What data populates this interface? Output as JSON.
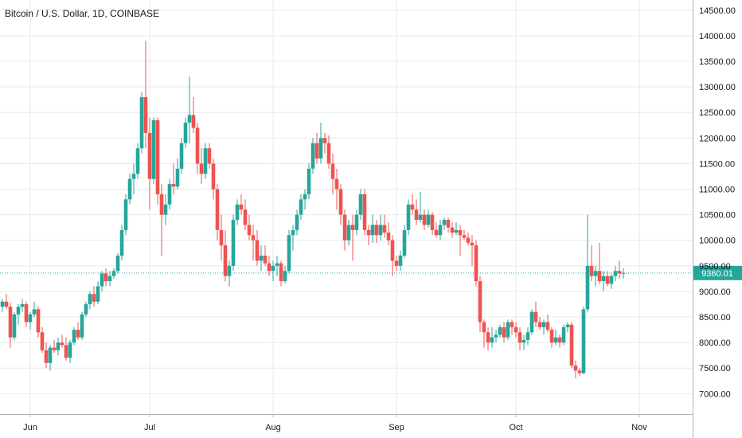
{
  "symbol_title": "Bitcoin / U.S. Dollar, 1D, COINBASE",
  "colors": {
    "up": "#26a69a",
    "down": "#ef5350",
    "grid": "#e6e9ee",
    "axis": "#b2b5be",
    "last_price_line": "#26a69a",
    "last_price_tag": "#26a69a"
  },
  "chart_data": {
    "type": "candlestick",
    "title": "Bitcoin / U.S. Dollar, 1D, COINBASE",
    "ylim": [
      6600,
      14700
    ],
    "y_ticks": [
      7000,
      7500,
      8000,
      8500,
      9000,
      9500,
      10000,
      10500,
      11000,
      11500,
      12000,
      12500,
      13000,
      13500,
      14000,
      14500
    ],
    "y_tick_labels": [
      "7000.00",
      "7500.00",
      "8000.00",
      "8500.00",
      "9000.00",
      "9500.00",
      "10000.00",
      "10500.00",
      "11000.00",
      "11500.00",
      "12000.00",
      "12500.00",
      "13000.00",
      "13500.00",
      "14000.00",
      "14500.00"
    ],
    "x_ticks": [
      {
        "label": "Jun",
        "date": "2019-06-01"
      },
      {
        "label": "Jul",
        "date": "2019-07-01"
      },
      {
        "label": "Aug",
        "date": "2019-08-01"
      },
      {
        "label": "Sep",
        "date": "2019-09-01"
      },
      {
        "label": "Oct",
        "date": "2019-10-01"
      },
      {
        "label": "Nov",
        "date": "2019-11-01"
      }
    ],
    "start_date": "2019-05-25",
    "last_price": 9360.01,
    "last_price_label": "9360.01",
    "grid": true,
    "ohlc": [
      [
        8700,
        8850,
        8600,
        8800
      ],
      [
        8800,
        8950,
        8650,
        8700
      ],
      [
        8700,
        8780,
        7900,
        8100
      ],
      [
        8100,
        8600,
        8050,
        8550
      ],
      [
        8550,
        8750,
        8350,
        8700
      ],
      [
        8700,
        8850,
        8600,
        8750
      ],
      [
        8750,
        8800,
        8300,
        8400
      ],
      [
        8400,
        8600,
        8250,
        8550
      ],
      [
        8550,
        8800,
        8500,
        8650
      ],
      [
        8650,
        8700,
        8100,
        8200
      ],
      [
        8200,
        8300,
        7800,
        7850
      ],
      [
        7850,
        8000,
        7500,
        7600
      ],
      [
        7600,
        7950,
        7450,
        7900
      ],
      [
        7900,
        8050,
        7800,
        7850
      ],
      [
        7850,
        8100,
        7750,
        8000
      ],
      [
        8000,
        8150,
        7900,
        7950
      ],
      [
        7950,
        8100,
        7650,
        7700
      ],
      [
        7700,
        8050,
        7600,
        8000
      ],
      [
        8000,
        8300,
        7950,
        8250
      ],
      [
        8250,
        8400,
        8050,
        8100
      ],
      [
        8100,
        8600,
        8050,
        8550
      ],
      [
        8550,
        8800,
        8500,
        8750
      ],
      [
        8750,
        9000,
        8650,
        8950
      ],
      [
        8950,
        9100,
        8700,
        8800
      ],
      [
        8800,
        9200,
        8750,
        9100
      ],
      [
        9100,
        9400,
        9000,
        9350
      ],
      [
        9350,
        9450,
        9100,
        9200
      ],
      [
        9200,
        9400,
        9100,
        9300
      ],
      [
        9300,
        9450,
        9250,
        9400
      ],
      [
        9400,
        9750,
        9350,
        9700
      ],
      [
        9700,
        10300,
        9600,
        10200
      ],
      [
        10200,
        10900,
        10100,
        10800
      ],
      [
        10800,
        11300,
        10700,
        11200
      ],
      [
        11200,
        11500,
        10900,
        11300
      ],
      [
        11300,
        11900,
        11200,
        11800
      ],
      [
        11800,
        12900,
        11700,
        12800
      ],
      [
        12800,
        13900,
        11800,
        12100
      ],
      [
        12100,
        12400,
        10600,
        11200
      ],
      [
        11200,
        12400,
        11100,
        12350
      ],
      [
        12350,
        12400,
        10700,
        10900
      ],
      [
        10900,
        11100,
        9700,
        10500
      ],
      [
        10500,
        10900,
        10300,
        10700
      ],
      [
        10700,
        11200,
        10600,
        11100
      ],
      [
        11100,
        11500,
        10900,
        11050
      ],
      [
        11050,
        11600,
        11000,
        11400
      ],
      [
        11400,
        12000,
        11300,
        11900
      ],
      [
        11900,
        12400,
        11800,
        12300
      ],
      [
        12300,
        13200,
        11900,
        12450
      ],
      [
        12450,
        12800,
        12100,
        12200
      ],
      [
        12200,
        12300,
        11300,
        11500
      ],
      [
        11500,
        11800,
        11100,
        11300
      ],
      [
        11300,
        11900,
        11200,
        11800
      ],
      [
        11800,
        11900,
        11400,
        11500
      ],
      [
        11500,
        11600,
        10800,
        11000
      ],
      [
        11000,
        11100,
        10000,
        10200
      ],
      [
        10200,
        10500,
        9600,
        9900
      ],
      [
        9900,
        10200,
        9200,
        9300
      ],
      [
        9300,
        9600,
        9100,
        9500
      ],
      [
        9500,
        10500,
        9400,
        10400
      ],
      [
        10400,
        10800,
        10300,
        10700
      ],
      [
        10700,
        10900,
        10500,
        10600
      ],
      [
        10600,
        10800,
        10200,
        10300
      ],
      [
        10300,
        10500,
        10000,
        10100
      ],
      [
        10100,
        10300,
        9600,
        10000
      ],
      [
        10000,
        10200,
        9500,
        9600
      ],
      [
        9600,
        9900,
        9400,
        9700
      ],
      [
        9700,
        9900,
        9500,
        9550
      ],
      [
        9550,
        9700,
        9300,
        9400
      ],
      [
        9400,
        9600,
        9200,
        9500
      ],
      [
        9500,
        9700,
        9300,
        9550
      ],
      [
        9550,
        9600,
        9100,
        9200
      ],
      [
        9200,
        9500,
        9150,
        9400
      ],
      [
        9400,
        10200,
        9350,
        10100
      ],
      [
        10100,
        10300,
        9800,
        10200
      ],
      [
        10200,
        10600,
        10100,
        10500
      ],
      [
        10500,
        10900,
        10400,
        10800
      ],
      [
        10800,
        11000,
        10600,
        10900
      ],
      [
        10900,
        11500,
        10800,
        11400
      ],
      [
        11400,
        12000,
        11300,
        11900
      ],
      [
        11900,
        12100,
        11500,
        11600
      ],
      [
        11600,
        12300,
        11500,
        12000
      ],
      [
        12000,
        12100,
        11700,
        11900
      ],
      [
        11900,
        12050,
        11400,
        11500
      ],
      [
        11500,
        11700,
        10900,
        11200
      ],
      [
        11200,
        11400,
        10600,
        11000
      ],
      [
        11000,
        11100,
        10300,
        10500
      ],
      [
        10500,
        10600,
        9800,
        10000
      ],
      [
        10000,
        10400,
        9900,
        10300
      ],
      [
        10300,
        10500,
        9600,
        10200
      ],
      [
        10200,
        10600,
        10100,
        10500
      ],
      [
        10500,
        11000,
        10400,
        10900
      ],
      [
        10900,
        11000,
        10100,
        10200
      ],
      [
        10200,
        10300,
        9900,
        10100
      ],
      [
        10100,
        10500,
        9950,
        10300
      ],
      [
        10300,
        10400,
        9950,
        10100
      ],
      [
        10100,
        10500,
        10000,
        10300
      ],
      [
        10300,
        10500,
        10050,
        10150
      ],
      [
        10150,
        10350,
        9900,
        10000
      ],
      [
        10000,
        10100,
        9300,
        9600
      ],
      [
        9600,
        9700,
        9400,
        9500
      ],
      [
        9500,
        9800,
        9400,
        9700
      ],
      [
        9700,
        10300,
        9650,
        10200
      ],
      [
        10200,
        10800,
        10100,
        10700
      ],
      [
        10700,
        10900,
        10500,
        10600
      ],
      [
        10600,
        10800,
        10300,
        10400
      ],
      [
        10400,
        10950,
        10350,
        10500
      ],
      [
        10500,
        10600,
        10200,
        10300
      ],
      [
        10300,
        10600,
        10250,
        10500
      ],
      [
        10500,
        10550,
        10100,
        10200
      ],
      [
        10200,
        10350,
        10050,
        10100
      ],
      [
        10100,
        10400,
        10000,
        10300
      ],
      [
        10300,
        10450,
        10200,
        10400
      ],
      [
        10400,
        10450,
        10150,
        10250
      ],
      [
        10250,
        10350,
        10050,
        10150
      ],
      [
        10150,
        10350,
        10100,
        10200
      ],
      [
        10200,
        10300,
        9700,
        10100
      ],
      [
        10100,
        10200,
        10000,
        10050
      ],
      [
        10050,
        10150,
        9900,
        9950
      ],
      [
        9950,
        10100,
        9500,
        9900
      ],
      [
        9900,
        10000,
        9100,
        9200
      ],
      [
        9200,
        9300,
        8200,
        8400
      ],
      [
        8400,
        8450,
        7900,
        8200
      ],
      [
        8200,
        8300,
        7850,
        8000
      ],
      [
        8000,
        8300,
        7900,
        8100
      ],
      [
        8100,
        8250,
        8000,
        8150
      ],
      [
        8150,
        8350,
        8100,
        8300
      ],
      [
        8300,
        8400,
        8000,
        8100
      ],
      [
        8100,
        8450,
        8050,
        8400
      ],
      [
        8400,
        8450,
        8150,
        8300
      ],
      [
        8300,
        8400,
        8100,
        8200
      ],
      [
        8200,
        8300,
        7850,
        8000
      ],
      [
        8000,
        8150,
        7850,
        8050
      ],
      [
        8050,
        8300,
        7950,
        8200
      ],
      [
        8200,
        8650,
        8150,
        8600
      ],
      [
        8600,
        8800,
        8300,
        8400
      ],
      [
        8400,
        8500,
        8250,
        8300
      ],
      [
        8300,
        8450,
        8150,
        8400
      ],
      [
        8400,
        8550,
        8200,
        8250
      ],
      [
        8250,
        8300,
        7900,
        8000
      ],
      [
        8000,
        8250,
        7950,
        8100
      ],
      [
        8100,
        8150,
        7900,
        8000
      ],
      [
        8000,
        8350,
        7950,
        8300
      ],
      [
        8300,
        8400,
        8200,
        8350
      ],
      [
        8350,
        8400,
        7500,
        7550
      ],
      [
        7550,
        7650,
        7300,
        7450
      ],
      [
        7450,
        7500,
        7350,
        7400
      ],
      [
        7400,
        8700,
        7380,
        8650
      ],
      [
        8650,
        10500,
        8600,
        9500
      ],
      [
        9500,
        9900,
        9200,
        9300
      ],
      [
        9300,
        9500,
        9100,
        9400
      ],
      [
        9400,
        9950,
        9150,
        9200
      ],
      [
        9200,
        9400,
        9000,
        9300
      ],
      [
        9300,
        9400,
        9100,
        9150
      ],
      [
        9150,
        9350,
        9050,
        9300
      ],
      [
        9300,
        9500,
        9200,
        9400
      ],
      [
        9400,
        9600,
        9250,
        9350
      ],
      [
        9350,
        9450,
        9250,
        9360.01
      ]
    ]
  }
}
